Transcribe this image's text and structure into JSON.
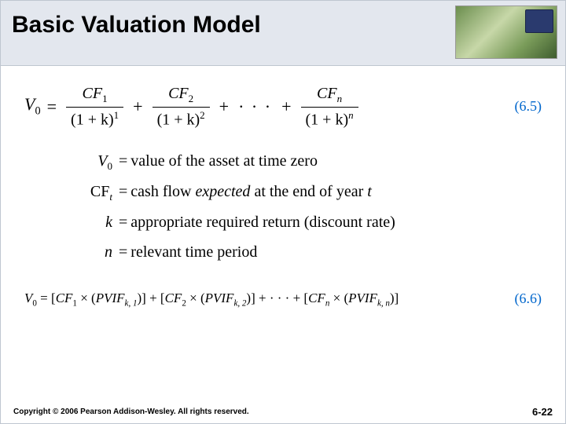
{
  "header": {
    "title": "Basic Valuation Model",
    "background_color": "#e3e7ee",
    "title_fontsize": 30,
    "title_color": "#000000"
  },
  "equation_65": {
    "lhs": "V",
    "lhs_sub": "0",
    "terms": [
      {
        "num_var": "CF",
        "num_sub": "1",
        "den_base": "(1 + k)",
        "den_sup": "1"
      },
      {
        "num_var": "CF",
        "num_sub": "2",
        "den_base": "(1 + k)",
        "den_sup": "2"
      },
      {
        "num_var": "CF",
        "num_sub": "n",
        "den_base": "(1 + k)",
        "den_sup": "n",
        "sub_italic": true,
        "sup_italic": true
      }
    ],
    "ellipsis": "· · ·",
    "number": "(6.5)",
    "number_color": "#0066cc"
  },
  "definitions": [
    {
      "sym_html": "V<span class='sub'>0</span>",
      "text": "value of the asset at time zero"
    },
    {
      "sym_html": "<span class='upright'>CF</span><span class='subit'>t</span>",
      "text_html": "cash flow <span class='expected'>expected</span> at the end of year <span style='font-style:italic'>t</span>"
    },
    {
      "sym_html": "k",
      "text": "appropriate required return (discount rate)"
    },
    {
      "sym_html": "n",
      "text": "relevant time period"
    }
  ],
  "equation_66": {
    "lhs": "V",
    "lhs_sub": "0",
    "terms": [
      {
        "cf_sub": "1",
        "pvif_sub": "k, 1"
      },
      {
        "cf_sub": "2",
        "pvif_sub": "k, 2"
      },
      {
        "cf_sub": "n",
        "pvif_sub": "k, n",
        "italic_sub": true
      }
    ],
    "ellipsis": "· · ·",
    "number": "(6.6)",
    "number_color": "#0066cc"
  },
  "footer": {
    "copyright": "Copyright © 2006 Pearson Addison-Wesley. All rights reserved.",
    "page": "6-22"
  },
  "colors": {
    "background": "#ffffff",
    "border": "#bfc6d0",
    "link_blue": "#0066cc"
  }
}
